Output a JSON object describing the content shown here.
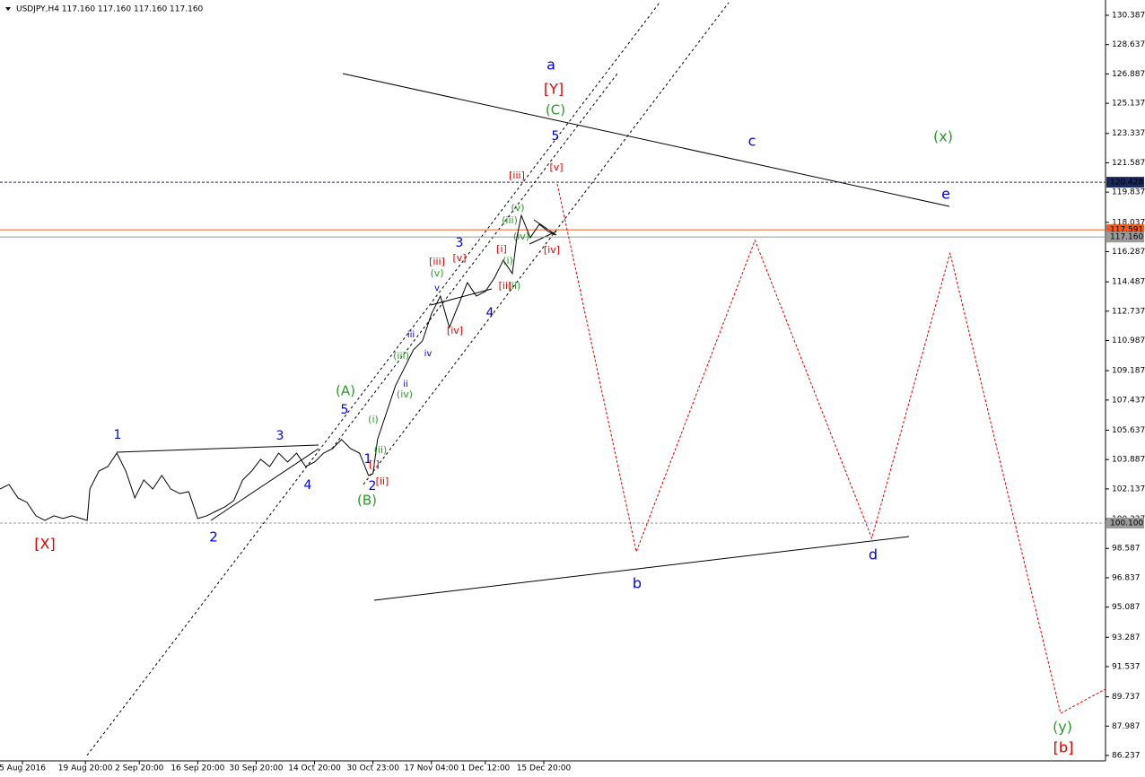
{
  "chart_data": {
    "type": "line",
    "title": "USDJPY,H4  117.160 117.160 117.160 117.160",
    "xlim": [
      0,
      246
    ],
    "ylim": [
      85.916,
      131.297
    ],
    "yticks": [
      130.387,
      128.637,
      126.887,
      125.137,
      123.337,
      121.587,
      119.837,
      118.037,
      116.287,
      114.487,
      112.737,
      110.987,
      109.187,
      107.437,
      105.637,
      103.887,
      102.137,
      100.337,
      98.587,
      96.837,
      95.087,
      93.287,
      91.537,
      89.737,
      87.987,
      86.237
    ],
    "xticks": [
      {
        "value": 5,
        "label": "5 Aug 2016"
      },
      {
        "value": 19,
        "label": "19 Aug 20:00"
      },
      {
        "value": 31,
        "label": "2 Sep 20:00"
      },
      {
        "value": 44,
        "label": "16 Sep 20:00"
      },
      {
        "value": 57,
        "label": "30 Sep 20:00"
      },
      {
        "value": 70,
        "label": "14 Oct 20:00"
      },
      {
        "value": 83,
        "label": "30 Oct 23:00"
      },
      {
        "value": 96,
        "label": "17 Nov 04:00"
      },
      {
        "value": 108,
        "label": "1 Dec 12:00"
      },
      {
        "value": 121,
        "label": "15 Dec 20:00"
      }
    ],
    "series": [
      {
        "color": "#000000",
        "dashed": false,
        "x": [
          0,
          2,
          4,
          6,
          8,
          10,
          12,
          14,
          16,
          18,
          19.4,
          20,
          22,
          24,
          26,
          28,
          30,
          32,
          34,
          36,
          38,
          40,
          42,
          44,
          46,
          48,
          50,
          52,
          54,
          56,
          58,
          60,
          62,
          64,
          66,
          68,
          70,
          72,
          74,
          76,
          78,
          80,
          82,
          83,
          84,
          86,
          88,
          90,
          92,
          94,
          96,
          98,
          100,
          102,
          104,
          106,
          108,
          110,
          112,
          114,
          115,
          116,
          118,
          120,
          122,
          123.6
        ],
        "values": [
          102.13,
          102.4,
          101.6,
          101.33,
          100.53,
          100.26,
          100.53,
          100.37,
          100.53,
          100.37,
          100.26,
          102.13,
          103.2,
          103.47,
          104.27,
          103.2,
          101.6,
          102.67,
          102.13,
          102.94,
          102.13,
          101.86,
          101.97,
          100.37,
          100.53,
          100.8,
          101.06,
          101.43,
          102.67,
          103.2,
          103.9,
          103.47,
          104.27,
          103.74,
          104.27,
          103.47,
          103.74,
          104.27,
          104.54,
          105.08,
          104.54,
          104.27,
          102.94,
          103.04,
          105.08,
          106.68,
          108.29,
          109.36,
          110.43,
          110.96,
          112.57,
          113.64,
          111.76,
          113.1,
          114.44,
          113.64,
          113.91,
          114.71,
          115.78,
          114.98,
          117.12,
          118.45,
          117.12,
          117.92,
          117.49,
          117.28
        ]
      },
      {
        "color": "#e00000",
        "dashed": true,
        "x": [
          124,
          141.6,
          168,
          194,
          211.4,
          236,
          246
        ],
        "values": [
          120.33,
          98.39,
          116.96,
          99.19,
          116.21,
          88.75,
          90.2
        ]
      }
    ],
    "hlines": [
      {
        "value": 120.428,
        "label": "120.428",
        "color": "#1a2a5a",
        "dashed": true
      },
      {
        "value": 117.591,
        "label": "117.591",
        "color": "#f05a1a",
        "dashed": false
      },
      {
        "value": 117.16,
        "label": "117.160",
        "color": "#9a9a9a",
        "dashed": false
      },
      {
        "value": 100.1,
        "label": "100.100",
        "color": "#9a9a9a",
        "dashed": true
      }
    ],
    "annotations": [
      {
        "text": "a",
        "color": "#0000e0"
      },
      {
        "text": "[Y]",
        "color": "#e00000"
      },
      {
        "text": "(C)",
        "color": "#2a9a2a"
      },
      {
        "text": "5",
        "color": "#0000e0"
      },
      {
        "text": "c",
        "color": "#0000e0"
      },
      {
        "text": "(x)",
        "color": "#2a9a2a"
      },
      {
        "text": "e",
        "color": "#0000e0"
      },
      {
        "text": "[v]",
        "color": "#e00000"
      },
      {
        "text": "[iii]",
        "color": "#e00000"
      },
      {
        "text": "(v)",
        "color": "#2a9a2a"
      },
      {
        "text": "(iii)",
        "color": "#2a9a2a"
      },
      {
        "text": "(iv)",
        "color": "#2a9a2a"
      },
      {
        "text": "[iv]",
        "color": "#e00000"
      },
      {
        "text": "3",
        "color": "#0000e0"
      },
      {
        "text": "[iii]",
        "color": "#e00000"
      },
      {
        "text": "[v]",
        "color": "#e00000"
      },
      {
        "text": "(v)",
        "color": "#2a9a2a"
      },
      {
        "text": "[i]",
        "color": "#e00000"
      },
      {
        "text": "(i)",
        "color": "#2a9a2a"
      },
      {
        "text": "[ii]",
        "color": "#e00000"
      },
      {
        "text": "(ii)",
        "color": "#2a9a2a"
      },
      {
        "text": "4",
        "color": "#0000e0"
      },
      {
        "text": "v",
        "color": "#0000e0"
      },
      {
        "text": "[iv]",
        "color": "#e00000"
      },
      {
        "text": "iii",
        "color": "#0000e0"
      },
      {
        "text": "(iii)",
        "color": "#2a9a2a"
      },
      {
        "text": "iv",
        "color": "#0000e0"
      },
      {
        "text": "ii",
        "color": "#0000e0"
      },
      {
        "text": "(iv)",
        "color": "#2a9a2a"
      },
      {
        "text": "(A)",
        "color": "#2a9a2a"
      },
      {
        "text": "5",
        "color": "#0000e0"
      },
      {
        "text": "(i)",
        "color": "#2a9a2a"
      },
      {
        "text": "(ii)",
        "color": "#2a9a2a"
      },
      {
        "text": "1",
        "color": "#0000e0"
      },
      {
        "text": "[i]",
        "color": "#e00000"
      },
      {
        "text": "[ii]",
        "color": "#e00000"
      },
      {
        "text": "2",
        "color": "#0000e0"
      },
      {
        "text": "(B)",
        "color": "#2a9a2a"
      },
      {
        "text": "1",
        "color": "#0000e0"
      },
      {
        "text": "3",
        "color": "#0000e0"
      },
      {
        "text": "4",
        "color": "#0000e0"
      },
      {
        "text": "2",
        "color": "#0000e0"
      },
      {
        "text": "[X]",
        "color": "#e00000"
      },
      {
        "text": "b",
        "color": "#0000e0"
      },
      {
        "text": "d",
        "color": "#0000e0"
      },
      {
        "text": "(y)",
        "color": "#2a9a2a"
      },
      {
        "text": "[b]",
        "color": "#e00000"
      }
    ]
  }
}
